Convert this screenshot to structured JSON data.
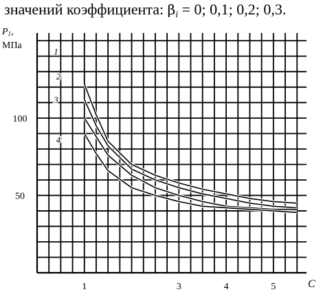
{
  "caption": {
    "prefix": "значений коэффициента: ",
    "symbol": "β",
    "subscript": "i",
    "suffix": " = 0; 0,1; 0,2; 0,3."
  },
  "chart_data": {
    "type": "line",
    "ylabel": "P",
    "ylabel_subscript": "1",
    "ylabel_comma": ",",
    "yunit": "МПа",
    "xlabel": "C",
    "grid": true,
    "xlim": [
      0.0,
      5.7
    ],
    "ylim": [
      0,
      155
    ],
    "x_ticks": [
      {
        "value": 1,
        "label": "1"
      },
      {
        "value": 3,
        "label": "3"
      },
      {
        "value": 4,
        "label": "4"
      },
      {
        "value": 5,
        "label": "5"
      }
    ],
    "y_ticks": [
      {
        "value": 100,
        "label": "100"
      },
      {
        "value": 50,
        "label": "50"
      }
    ],
    "curve_labels": [
      {
        "text": "1",
        "x": 0.4,
        "y": 141
      },
      {
        "text": "2",
        "x": 0.45,
        "y": 125
      },
      {
        "text": "3",
        "x": 0.4,
        "y": 110
      },
      {
        "text": "4",
        "x": 0.45,
        "y": 84
      }
    ],
    "series": [
      {
        "x": [
          1.0,
          1.25,
          1.5,
          2.0,
          2.5,
          3.0,
          3.5,
          4.0,
          4.5,
          5.0,
          5.5
        ],
        "y": [
          122,
          102,
          85,
          70,
          63,
          58,
          54,
          51,
          48,
          46,
          45
        ]
      },
      {
        "x": [
          1.0,
          1.25,
          1.5,
          2.0,
          2.5,
          3.0,
          3.5,
          4.0,
          4.5,
          5.0,
          5.5
        ],
        "y": [
          112,
          95,
          82,
          67,
          60,
          55,
          51,
          48,
          45,
          43,
          42
        ]
      },
      {
        "x": [
          1.0,
          1.25,
          1.5,
          2.0,
          2.5,
          3.0,
          3.5,
          4.0,
          4.5,
          5.0,
          5.5
        ],
        "y": [
          100,
          88,
          76,
          63,
          55,
          50,
          46,
          43,
          42,
          41,
          41
        ]
      },
      {
        "x": [
          1.0,
          1.25,
          1.5,
          2.0,
          2.5,
          3.0,
          3.5,
          4.0,
          4.5,
          5.0,
          5.5
        ],
        "y": [
          90,
          77,
          66,
          55,
          50,
          46,
          43,
          42,
          41,
          40,
          39
        ]
      }
    ]
  }
}
